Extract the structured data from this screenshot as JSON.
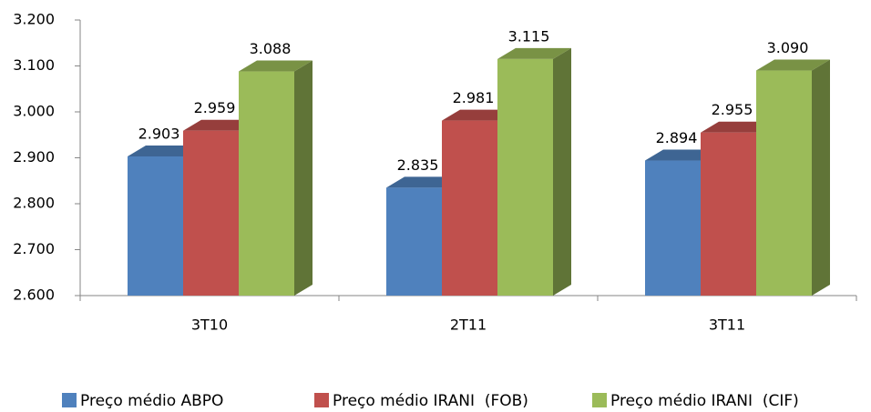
{
  "chart_data": {
    "type": "bar3d",
    "categories": [
      "3T10",
      "2T11",
      "3T11"
    ],
    "series": [
      {
        "name": "Preço médio ABPO",
        "color": "#4f81bd",
        "values": [
          2903,
          2835,
          2894
        ],
        "value_labels": [
          "2.903",
          "2.835",
          "2.894"
        ]
      },
      {
        "name": "Preço médio IRANI  (FOB)",
        "color": "#c0504d",
        "values": [
          2959,
          2981,
          2955
        ],
        "value_labels": [
          "2.959",
          "2.981",
          "2.955"
        ]
      },
      {
        "name": "Preço médio IRANI  (CIF)",
        "color": "#9bbb59",
        "values": [
          3088,
          3115,
          3090
        ],
        "value_labels": [
          "3.088",
          "3.115",
          "3.090"
        ]
      }
    ],
    "ylim": [
      2600,
      3200
    ],
    "yticks": [
      {
        "value": 2600,
        "label": "2.600"
      },
      {
        "value": 2700,
        "label": "2.700"
      },
      {
        "value": 2800,
        "label": "2.800"
      },
      {
        "value": 2900,
        "label": "2.900"
      },
      {
        "value": 3000,
        "label": "3.000"
      },
      {
        "value": 3100,
        "label": "3.100"
      },
      {
        "value": 3200,
        "label": "3.200"
      }
    ],
    "legend": "bottom",
    "grid": false
  }
}
